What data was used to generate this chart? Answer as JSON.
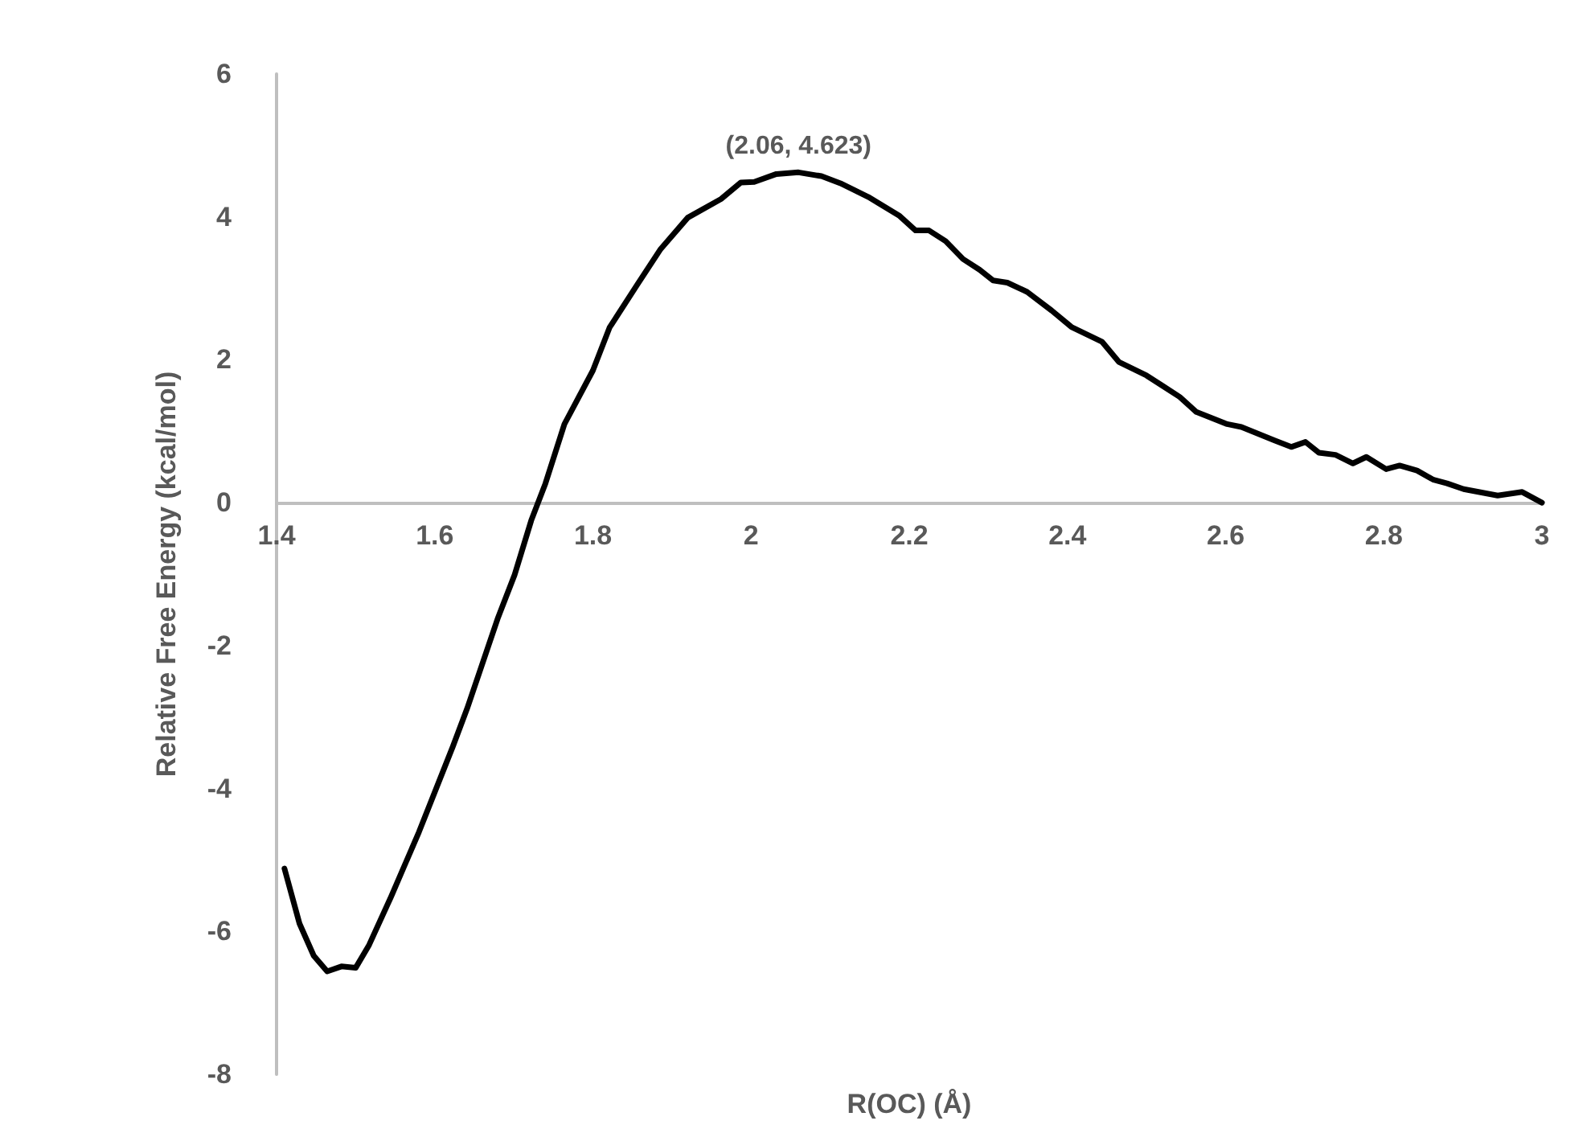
{
  "chart_data": {
    "type": "line",
    "xlabel": "R(OC) (Å)",
    "ylabel": "Relative Free Energy (kcal/mol)",
    "annotations": [
      {
        "text": "(2.06, 4.623)",
        "x": 2.06,
        "y": 4.623
      }
    ],
    "xlim": [
      1.4,
      3
    ],
    "xticks": [
      1.4,
      1.6,
      1.8,
      2,
      2.2,
      2.4,
      2.6,
      2.8,
      3
    ],
    "ylim": [
      -8,
      6
    ],
    "yticks": [
      -8,
      -6,
      -4,
      -2,
      0,
      2,
      4,
      6
    ],
    "grid": false,
    "marker": "none",
    "line_style": "solid",
    "series": [
      {
        "color": "#000000",
        "x": [
          1.41,
          1.429,
          1.447,
          1.464,
          1.482,
          1.5,
          1.517,
          1.545,
          1.58,
          1.623,
          1.641,
          1.68,
          1.701,
          1.722,
          1.74,
          1.764,
          1.8,
          1.821,
          1.856,
          1.885,
          1.92,
          1.962,
          1.987,
          2.004,
          2.032,
          2.06,
          2.089,
          2.113,
          2.148,
          2.187,
          2.208,
          2.225,
          2.246,
          2.268,
          2.289,
          2.306,
          2.324,
          2.349,
          2.38,
          2.405,
          2.444,
          2.465,
          2.5,
          2.521,
          2.542,
          2.563,
          2.602,
          2.62,
          2.662,
          2.683,
          2.701,
          2.718,
          2.739,
          2.761,
          2.778,
          2.803,
          2.82,
          2.842,
          2.863,
          2.88,
          2.901,
          2.944,
          2.975,
          3
        ],
        "values": [
          -5.12,
          -5.89,
          -6.34,
          -6.56,
          -6.49,
          -6.51,
          -6.19,
          -5.51,
          -4.61,
          -3.41,
          -2.88,
          -1.61,
          -1.01,
          -0.25,
          0.27,
          1.1,
          1.85,
          2.45,
          3.05,
          3.54,
          3.99,
          4.25,
          4.48,
          4.49,
          4.6,
          4.623,
          4.57,
          4.47,
          4.28,
          4.02,
          3.81,
          3.81,
          3.66,
          3.41,
          3.26,
          3.11,
          3.08,
          2.95,
          2.69,
          2.46,
          2.25,
          1.97,
          1.78,
          1.63,
          1.48,
          1.27,
          1.1,
          1.06,
          0.87,
          0.78,
          0.85,
          0.7,
          0.67,
          0.55,
          0.64,
          0.47,
          0.52,
          0.45,
          0.32,
          0.27,
          0.19,
          0.1,
          0.15,
          0
        ]
      }
    ]
  }
}
